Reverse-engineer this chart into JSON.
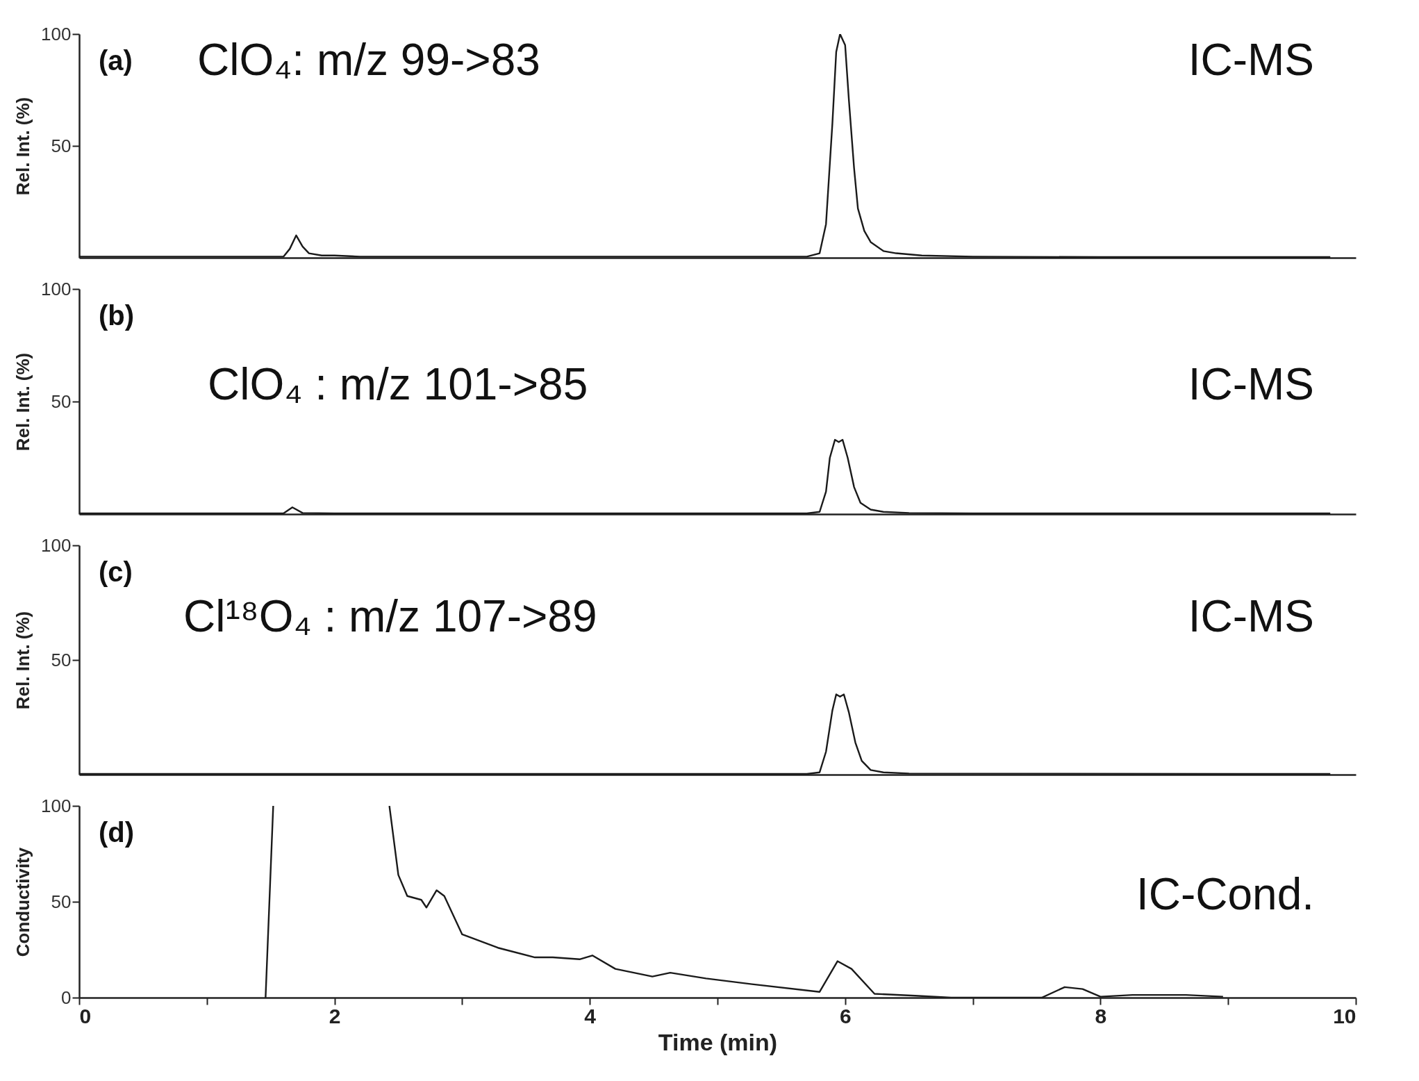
{
  "chart_data": [
    {
      "type": "line",
      "ylabel": "Rel. Int. (%)",
      "annotations": [
        "(a)",
        "ClO₄: m/z 99->83",
        "IC-MS"
      ],
      "xlim": [
        0,
        10
      ],
      "ylim": [
        0,
        100
      ],
      "yticks": [
        50,
        100
      ],
      "tick_labels": "y",
      "grid": false,
      "x": [
        0,
        1.6,
        1.65,
        1.7,
        1.75,
        1.8,
        1.9,
        2.0,
        2.2,
        3,
        4,
        5,
        5.7,
        5.8,
        5.85,
        5.9,
        5.93,
        5.96,
        6.0,
        6.03,
        6.07,
        6.1,
        6.15,
        6.2,
        6.3,
        6.4,
        6.6,
        7,
        8,
        9,
        9.8
      ],
      "series": [
        {
          "color": "#1a1a1a",
          "values": [
            0.5,
            0.5,
            4,
            10,
            5,
            2,
            1,
            1,
            0.5,
            0.5,
            0.5,
            0.5,
            0.5,
            2,
            15,
            60,
            92,
            100,
            95,
            70,
            40,
            22,
            12,
            7,
            3,
            2,
            1,
            0.5,
            0.3,
            0.3,
            0.3
          ]
        }
      ]
    },
    {
      "type": "line",
      "ylabel": "Rel. Int. (%)",
      "annotations": [
        "(b)",
        "ClO₄ : m/z 101->85",
        "IC-MS"
      ],
      "xlim": [
        0,
        10
      ],
      "ylim": [
        0,
        100
      ],
      "yticks": [
        50,
        100
      ],
      "tick_labels": "y",
      "grid": false,
      "x": [
        0,
        1.6,
        1.67,
        1.75,
        2,
        5.7,
        5.8,
        5.85,
        5.88,
        5.92,
        5.95,
        5.98,
        6.02,
        6.07,
        6.12,
        6.2,
        6.3,
        6.5,
        7,
        9.8
      ],
      "series": [
        {
          "color": "#1a1a1a",
          "values": [
            0.3,
            0.3,
            3,
            0.5,
            0.3,
            0.3,
            1,
            10,
            25,
            33,
            32,
            33,
            25,
            12,
            5,
            2,
            1,
            0.5,
            0.3,
            0.3
          ]
        }
      ]
    },
    {
      "type": "line",
      "ylabel": "Rel. Int. (%)",
      "annotations": [
        "(c)",
        "Cl¹⁸O₄ : m/z 107->89",
        "IC-MS"
      ],
      "xlim": [
        0,
        10
      ],
      "ylim": [
        0,
        100
      ],
      "yticks": [
        50,
        100
      ],
      "tick_labels": "y",
      "grid": false,
      "x": [
        0,
        5.7,
        5.8,
        5.85,
        5.9,
        5.93,
        5.96,
        5.99,
        6.03,
        6.08,
        6.13,
        6.2,
        6.3,
        6.5,
        9.8
      ],
      "series": [
        {
          "color": "#1a1a1a",
          "values": [
            0.3,
            0.3,
            1,
            10,
            28,
            35,
            34,
            35,
            27,
            14,
            6,
            2,
            1,
            0.5,
            0.3
          ]
        }
      ]
    },
    {
      "type": "line",
      "xlabel": "Time (min)",
      "ylabel": "Conductivity",
      "annotations": [
        "(d)",
        "IC-Cond."
      ],
      "xlim": [
        0,
        10
      ],
      "ylim": [
        0,
        100
      ],
      "xticks": [
        0,
        {
          "value": 1,
          "label": null
        },
        2,
        {
          "value": 3,
          "label": null
        },
        4,
        {
          "value": 5,
          "label": null
        },
        6,
        {
          "value": 7,
          "label": null
        },
        8,
        {
          "value": 9,
          "label": null
        },
        10
      ],
      "yticks": [
        0,
        50,
        100
      ],
      "grid": false,
      "x": [
        1.46,
        1.52,
        2.0,
        2.43,
        2.5,
        2.57,
        2.68,
        2.72,
        2.8,
        2.86,
        3.0,
        3.28,
        3.57,
        3.71,
        3.92,
        4.02,
        4.2,
        4.49,
        4.63,
        4.91,
        5.27,
        5.8,
        5.94,
        6.05,
        6.23,
        6.55,
        6.83,
        7.54,
        7.72,
        7.86,
        8.0,
        8.25,
        8.67,
        8.96
      ],
      "series": [
        {
          "color": "#1a1a1a",
          "values": [
            0,
            100,
            null,
            100,
            64,
            53,
            51,
            47,
            56,
            53,
            33,
            26,
            21,
            21,
            20,
            22,
            15,
            11,
            13,
            10,
            7,
            3,
            19,
            15,
            2,
            1,
            0,
            0,
            5.5,
            4.5,
            0.5,
            1.4,
            1.4,
            0.5
          ]
        }
      ]
    }
  ]
}
